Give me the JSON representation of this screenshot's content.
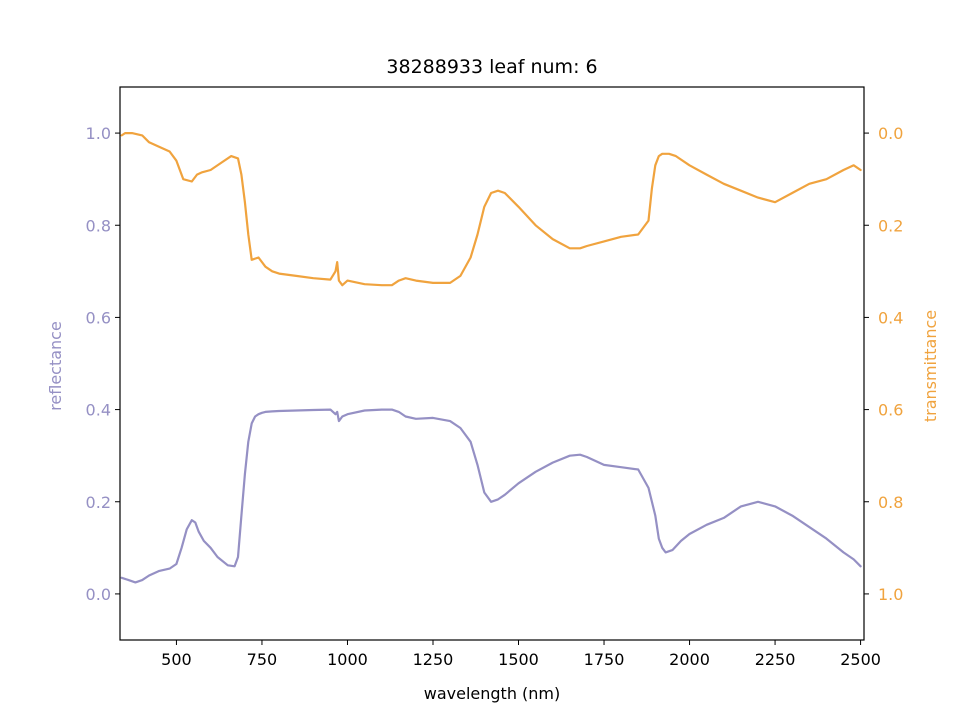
{
  "colors": {
    "reflectance": "#9590c4",
    "transmittance": "#f0a33e",
    "axis": "#000000"
  },
  "chart_data": {
    "type": "line",
    "title": "38288933 leaf num: 6",
    "xlabel": "wavelength (nm)",
    "ylabel_left": "reflectance",
    "ylabel_right": "transmittance",
    "xlim": [
      335,
      2510
    ],
    "ylim_left": [
      -0.1,
      1.1
    ],
    "ylim_right": [
      1.1,
      -0.1
    ],
    "right_axis_inverted": true,
    "grid": false,
    "x_ticks": [
      "500",
      "750",
      "1000",
      "1250",
      "1500",
      "1750",
      "2000",
      "2250",
      "2500"
    ],
    "y_ticks_left": [
      "0.0",
      "0.2",
      "0.4",
      "0.6",
      "0.8",
      "1.0"
    ],
    "y_ticks_right": [
      "0.0",
      "0.2",
      "0.4",
      "0.6",
      "0.8",
      "1.0"
    ],
    "series": [
      {
        "name": "reflectance",
        "axis": "left",
        "x": [
          340,
          360,
          380,
          400,
          420,
          450,
          480,
          500,
          515,
          530,
          545,
          555,
          565,
          580,
          600,
          620,
          650,
          670,
          680,
          690,
          700,
          710,
          720,
          730,
          740,
          750,
          760,
          780,
          800,
          850,
          900,
          950,
          965,
          970,
          975,
          985,
          1000,
          1050,
          1100,
          1130,
          1150,
          1170,
          1200,
          1250,
          1300,
          1330,
          1360,
          1380,
          1400,
          1420,
          1440,
          1460,
          1500,
          1550,
          1600,
          1650,
          1680,
          1700,
          1750,
          1800,
          1850,
          1880,
          1900,
          1910,
          1920,
          1930,
          1950,
          1975,
          2000,
          2050,
          2100,
          2150,
          2200,
          2250,
          2300,
          2350,
          2400,
          2450,
          2480,
          2500
        ],
        "y": [
          0.035,
          0.03,
          0.025,
          0.03,
          0.04,
          0.05,
          0.055,
          0.065,
          0.1,
          0.14,
          0.16,
          0.155,
          0.135,
          0.115,
          0.1,
          0.08,
          0.062,
          0.06,
          0.08,
          0.17,
          0.26,
          0.33,
          0.37,
          0.385,
          0.39,
          0.393,
          0.395,
          0.396,
          0.397,
          0.398,
          0.399,
          0.4,
          0.39,
          0.395,
          0.375,
          0.385,
          0.39,
          0.398,
          0.4,
          0.4,
          0.395,
          0.385,
          0.38,
          0.382,
          0.375,
          0.36,
          0.33,
          0.28,
          0.22,
          0.2,
          0.205,
          0.215,
          0.24,
          0.265,
          0.285,
          0.3,
          0.302,
          0.297,
          0.28,
          0.275,
          0.27,
          0.23,
          0.17,
          0.12,
          0.1,
          0.09,
          0.095,
          0.115,
          0.13,
          0.15,
          0.165,
          0.19,
          0.2,
          0.19,
          0.17,
          0.145,
          0.12,
          0.09,
          0.075,
          0.06
        ]
      },
      {
        "name": "transmittance",
        "axis": "right",
        "x": [
          340,
          350,
          370,
          400,
          420,
          450,
          480,
          500,
          520,
          545,
          560,
          575,
          600,
          630,
          660,
          680,
          690,
          700,
          710,
          720,
          740,
          760,
          780,
          800,
          850,
          900,
          950,
          965,
          970,
          975,
          985,
          1000,
          1050,
          1100,
          1130,
          1150,
          1170,
          1200,
          1250,
          1300,
          1330,
          1360,
          1380,
          1400,
          1420,
          1440,
          1460,
          1500,
          1550,
          1600,
          1650,
          1680,
          1700,
          1750,
          1800,
          1850,
          1880,
          1890,
          1900,
          1910,
          1920,
          1940,
          1960,
          2000,
          2050,
          2100,
          2150,
          2200,
          2250,
          2300,
          2350,
          2400,
          2450,
          2480,
          2500
        ],
        "y": [
          0.005,
          0.0,
          0.0,
          0.005,
          0.02,
          0.03,
          0.04,
          0.06,
          0.1,
          0.105,
          0.09,
          0.085,
          0.08,
          0.065,
          0.05,
          0.055,
          0.09,
          0.15,
          0.22,
          0.275,
          0.27,
          0.29,
          0.3,
          0.305,
          0.31,
          0.315,
          0.318,
          0.3,
          0.28,
          0.32,
          0.33,
          0.32,
          0.328,
          0.33,
          0.33,
          0.32,
          0.315,
          0.32,
          0.325,
          0.325,
          0.31,
          0.27,
          0.22,
          0.16,
          0.13,
          0.125,
          0.13,
          0.16,
          0.2,
          0.23,
          0.25,
          0.25,
          0.245,
          0.235,
          0.225,
          0.22,
          0.19,
          0.12,
          0.07,
          0.05,
          0.045,
          0.045,
          0.05,
          0.07,
          0.09,
          0.11,
          0.125,
          0.14,
          0.15,
          0.13,
          0.11,
          0.1,
          0.08,
          0.07,
          0.08
        ]
      }
    ]
  }
}
